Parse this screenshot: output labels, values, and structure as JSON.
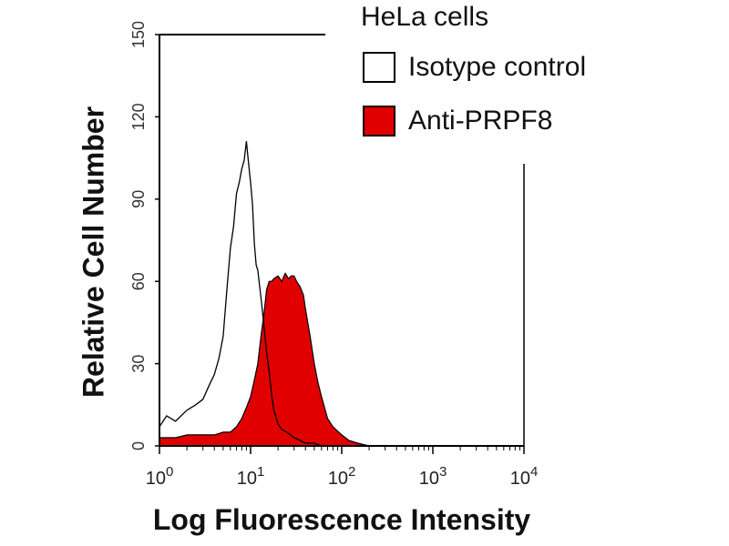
{
  "chart_data": {
    "type": "area",
    "title": "",
    "xlabel": "Log Fluorescence Intensity",
    "ylabel": "Relative Cell Number",
    "x_scale": "log",
    "xlim": [
      1,
      10000
    ],
    "ylim": [
      0,
      150
    ],
    "x_ticks": [
      {
        "base": "10",
        "exp": "0"
      },
      {
        "base": "10",
        "exp": "1"
      },
      {
        "base": "10",
        "exp": "2"
      },
      {
        "base": "10",
        "exp": "3"
      },
      {
        "base": "10",
        "exp": "4"
      }
    ],
    "y_ticks": [
      "0",
      "30",
      "60",
      "90",
      "120",
      "150"
    ],
    "y_tick_values": [
      0,
      30,
      60,
      90,
      120,
      150
    ],
    "legend": {
      "title": "HeLa cells",
      "placement": "top-right",
      "entries": [
        {
          "label": "Isotype control",
          "fill": "#ffffff"
        },
        {
          "label": "Anti-PRPF8",
          "fill": "#e00000"
        }
      ]
    },
    "series": [
      {
        "name": "Isotype control",
        "style": "outline",
        "color": "#000000",
        "x": [
          1,
          1.2,
          1.5,
          2,
          2.5,
          3,
          3.5,
          4,
          4.5,
          5,
          5.5,
          6,
          6.5,
          7,
          7.5,
          8,
          8.5,
          9,
          9.5,
          10,
          10.5,
          11,
          11.5,
          12,
          13,
          14,
          15,
          16,
          17,
          18,
          20,
          22,
          25,
          30,
          35,
          40,
          50,
          60,
          80,
          100,
          10000
        ],
        "y": [
          7,
          11,
          9,
          13,
          15,
          17,
          22,
          26,
          32,
          40,
          57,
          72,
          80,
          92,
          96,
          101,
          104,
          111,
          103,
          96,
          88,
          74,
          66,
          64,
          54,
          44,
          34,
          27,
          19,
          13,
          8,
          6,
          5,
          3,
          2,
          1,
          1,
          0,
          0,
          0,
          0
        ]
      },
      {
        "name": "Anti-PRPF8",
        "style": "filled",
        "color": "#e00000",
        "x": [
          1,
          1.5,
          2,
          3,
          4,
          5,
          6,
          7,
          8,
          9,
          10,
          11,
          12,
          13,
          14,
          15,
          16,
          17,
          18,
          20,
          22,
          24,
          26,
          28,
          30,
          32,
          35,
          38,
          40,
          45,
          50,
          55,
          60,
          70,
          80,
          100,
          120,
          150,
          200,
          300,
          10000
        ],
        "y": [
          3,
          3,
          4,
          4,
          4,
          5,
          5,
          7,
          10,
          14,
          18,
          24,
          30,
          40,
          48,
          57,
          60,
          60,
          61,
          62,
          60,
          63,
          61,
          62,
          62,
          60,
          58,
          55,
          50,
          40,
          30,
          23,
          18,
          10,
          7,
          4,
          2,
          1,
          0,
          0,
          0
        ]
      }
    ]
  }
}
